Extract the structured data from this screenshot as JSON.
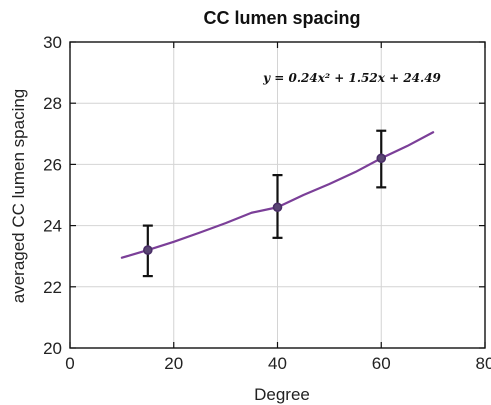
{
  "chart_data": {
    "type": "scatter",
    "title": "CC lumen spacing",
    "xlabel": "Degree",
    "ylabel": "averaged CC lumen spacing",
    "xlim": [
      0,
      80
    ],
    "ylim": [
      20,
      30
    ],
    "xticks": [
      0,
      20,
      40,
      60,
      80
    ],
    "yticks": [
      20,
      22,
      24,
      26,
      28,
      30
    ],
    "grid": true,
    "points": [
      {
        "x": 15,
        "y": 23.2,
        "err_low": 22.35,
        "err_high": 24.0
      },
      {
        "x": 40,
        "y": 24.6,
        "err_low": 23.6,
        "err_high": 25.65
      },
      {
        "x": 60,
        "y": 26.2,
        "err_low": 25.25,
        "err_high": 27.1
      }
    ],
    "fit": {
      "equation": "y = 0.24x² + 1.52x + 24.49",
      "x_range": [
        10,
        70
      ],
      "samples": [
        {
          "x": 10,
          "y": 22.95
        },
        {
          "x": 15,
          "y": 23.2
        },
        {
          "x": 20,
          "y": 23.47
        },
        {
          "x": 25,
          "y": 23.77
        },
        {
          "x": 30,
          "y": 24.08
        },
        {
          "x": 35,
          "y": 24.42
        },
        {
          "x": 40,
          "y": 24.6
        },
        {
          "x": 45,
          "y": 25.0
        },
        {
          "x": 50,
          "y": 25.36
        },
        {
          "x": 55,
          "y": 25.75
        },
        {
          "x": 60,
          "y": 26.2
        },
        {
          "x": 65,
          "y": 26.6
        },
        {
          "x": 70,
          "y": 27.05
        }
      ]
    },
    "colors": {
      "fit_line": "#7b3f98",
      "marker": "#4a2e67",
      "error_bar": "#111111",
      "grid": "#d4d4d4",
      "axis": "#111111"
    }
  }
}
